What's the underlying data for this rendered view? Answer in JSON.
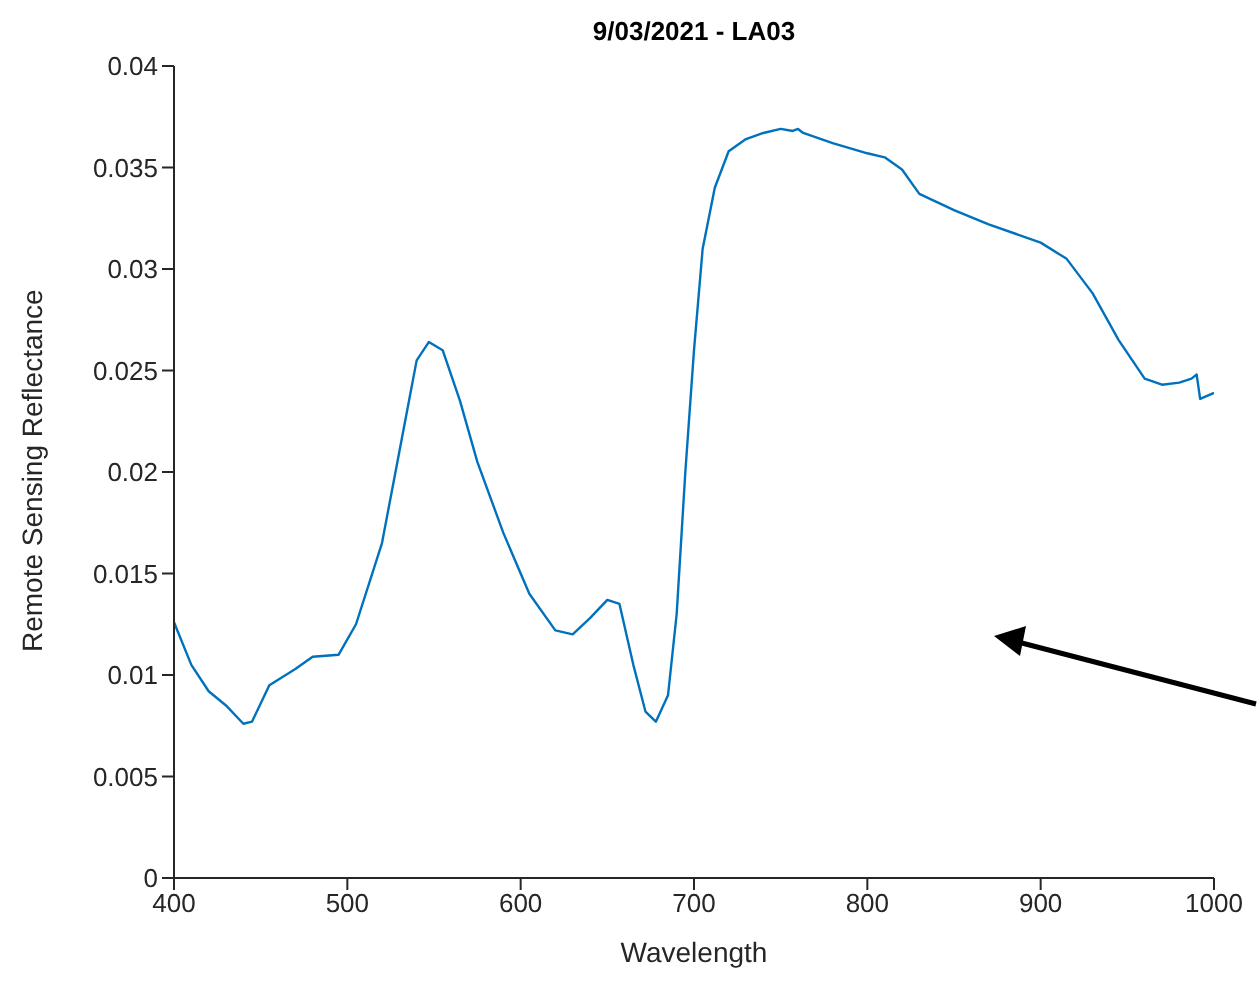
{
  "chart_data": {
    "type": "line",
    "title": "9/03/2021 - LA03",
    "xlabel": "Wavelength",
    "ylabel": "Remote Sensing Reflectance",
    "x": [
      400,
      410,
      420,
      430,
      440,
      445,
      455,
      470,
      480,
      495,
      505,
      520,
      530,
      540,
      547,
      555,
      565,
      575,
      590,
      605,
      620,
      630,
      640,
      650,
      657,
      665,
      672,
      678,
      685,
      690,
      695,
      700,
      705,
      712,
      720,
      730,
      740,
      750,
      757,
      760,
      763,
      780,
      800,
      810,
      820,
      830,
      850,
      870,
      900,
      915,
      930,
      945,
      960,
      970,
      980,
      987,
      990,
      992,
      1000
    ],
    "series": [
      {
        "color": "#0072bd",
        "values": [
          0.0126,
          0.0105,
          0.0092,
          0.0085,
          0.0076,
          0.0077,
          0.0095,
          0.0103,
          0.0109,
          0.011,
          0.0125,
          0.0165,
          0.021,
          0.0255,
          0.0264,
          0.026,
          0.0235,
          0.0205,
          0.017,
          0.014,
          0.0122,
          0.012,
          0.0128,
          0.0137,
          0.0135,
          0.0105,
          0.0082,
          0.0077,
          0.009,
          0.013,
          0.02,
          0.026,
          0.031,
          0.034,
          0.0358,
          0.0364,
          0.0367,
          0.0369,
          0.0368,
          0.0369,
          0.0367,
          0.0362,
          0.0357,
          0.0355,
          0.0349,
          0.0337,
          0.0329,
          0.0322,
          0.0313,
          0.0305,
          0.0288,
          0.0265,
          0.0246,
          0.0243,
          0.0244,
          0.0246,
          0.0248,
          0.0236,
          0.0239
        ]
      }
    ],
    "xlim": [
      400,
      1000
    ],
    "xticks": [
      400,
      500,
      600,
      700,
      800,
      900,
      1000
    ],
    "ylim": [
      0,
      0.04
    ],
    "yticks": [
      0,
      0.005,
      0.01,
      0.015,
      0.02,
      0.025,
      0.03,
      0.035,
      0.04
    ],
    "grid": false,
    "legend": false,
    "marker": "none",
    "line_style": "solid"
  }
}
